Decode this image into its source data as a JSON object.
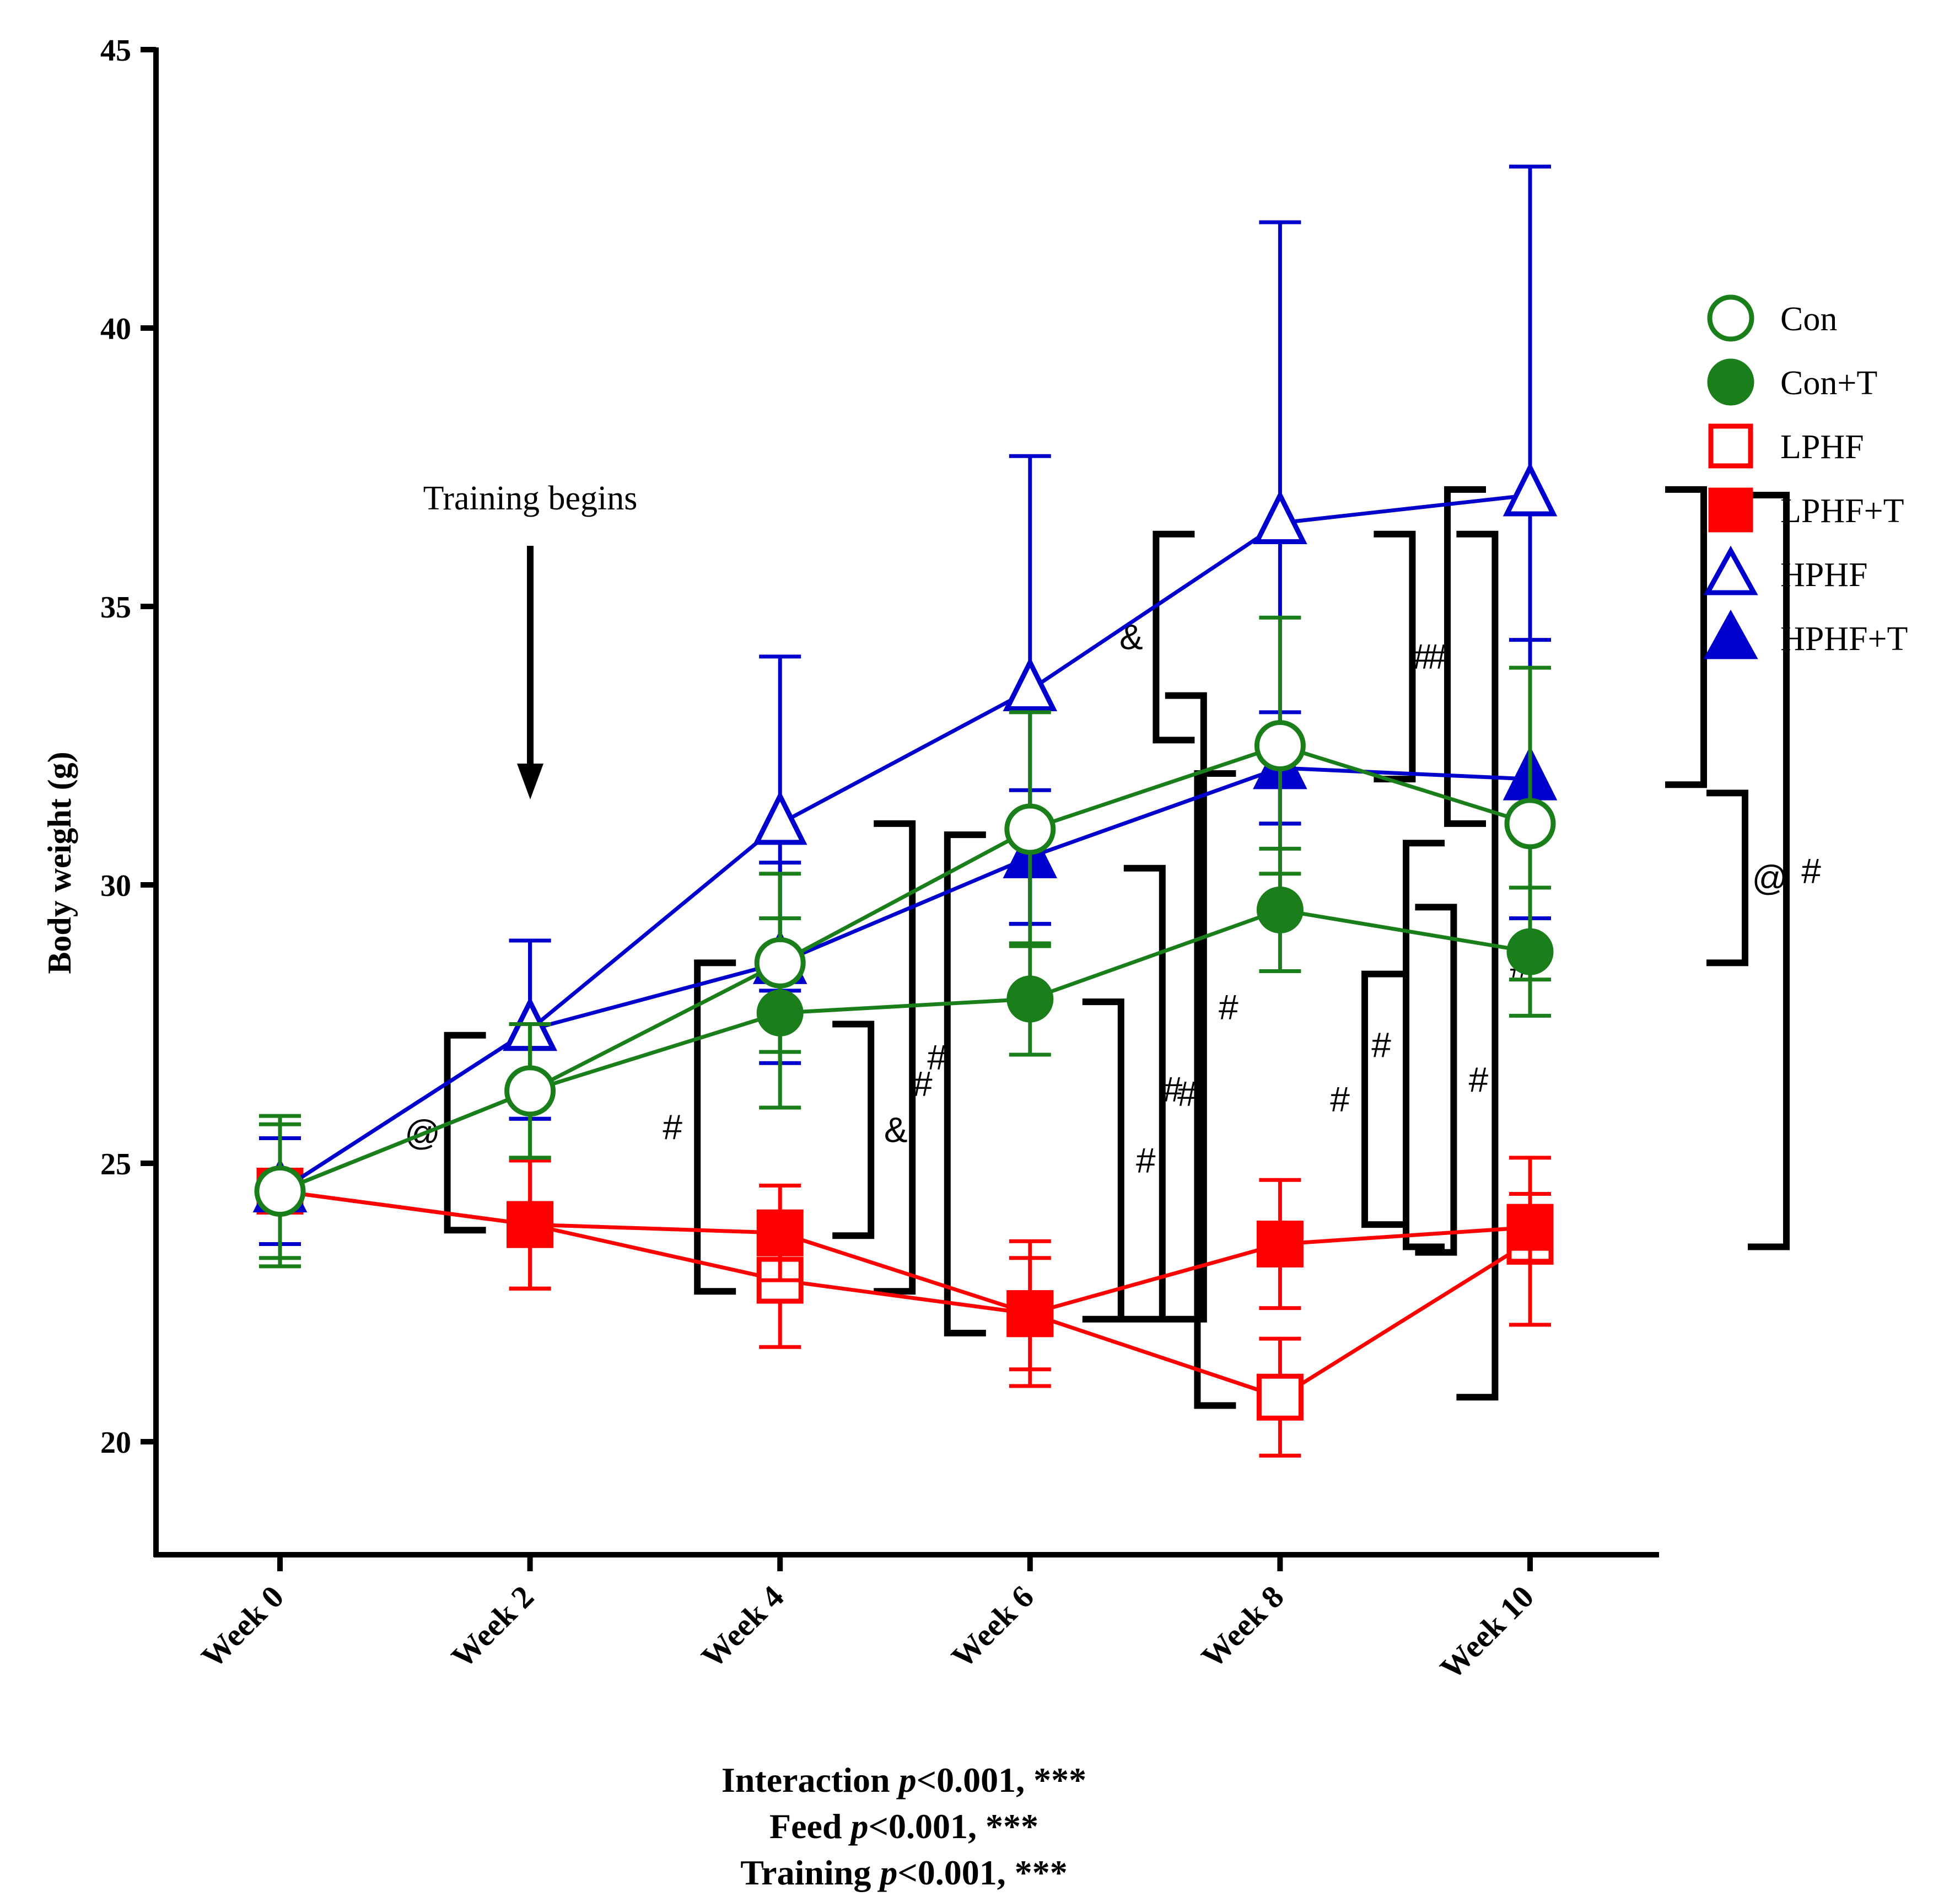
{
  "chart_data": {
    "type": "line",
    "ylabel": "Body weight (g)",
    "xlabel": "",
    "ylim": [
      18,
      45
    ],
    "yticks": [
      20,
      25,
      30,
      35,
      40,
      45
    ],
    "categories": [
      "Week 0",
      "Week 2",
      "Week 4",
      "Week 6",
      "Week 8",
      "Week 10"
    ],
    "legend_position": "right",
    "series": [
      {
        "name": "Con",
        "color": "#1a7f1a",
        "marker": "circle",
        "filled": false,
        "values": [
          24.5,
          26.3,
          28.6,
          31.0,
          32.5,
          31.1
        ],
        "sd": [
          1.35,
          1.2,
          1.6,
          2.1,
          2.3,
          2.8
        ]
      },
      {
        "name": "Con+T",
        "color": "#1a7f1a",
        "marker": "circle",
        "filled": true,
        "values": [
          24.5,
          26.3,
          27.7,
          27.95,
          29.55,
          28.8
        ],
        "sd": [
          1.2,
          1.2,
          1.7,
          1.0,
          1.1,
          1.15
        ]
      },
      {
        "name": "LPHF",
        "color": "#ff0000",
        "marker": "square",
        "filled": false,
        "values": [
          24.5,
          23.9,
          22.9,
          22.3,
          20.8,
          23.6
        ],
        "sd": [
          0.95,
          1.15,
          1.2,
          1.3,
          1.05,
          1.5
        ]
      },
      {
        "name": "LPHF+T",
        "color": "#ff0000",
        "marker": "square",
        "filled": true,
        "values": [
          24.5,
          23.9,
          23.75,
          22.3,
          23.55,
          23.85
        ],
        "sd": [
          0.95,
          1.15,
          0.85,
          1.0,
          1.15,
          0.6
        ]
      },
      {
        "name": "HPHF",
        "color": "#0000cc",
        "marker": "triangle",
        "filled": false,
        "values": [
          24.5,
          27.4,
          31.1,
          33.5,
          36.5,
          37.0
        ],
        "sd": [
          0.95,
          1.6,
          3.0,
          4.2,
          5.4,
          5.9
        ]
      },
      {
        "name": "HPHF+T",
        "color": "#0000cc",
        "marker": "triangle",
        "filled": true,
        "values": [
          24.5,
          27.4,
          28.6,
          30.5,
          32.1,
          31.9
        ],
        "sd": [
          0.95,
          1.6,
          1.8,
          1.2,
          1.0,
          2.5
        ]
      }
    ],
    "annotations": {
      "training_text": "Training begins",
      "brackets": [
        {
          "week": 1,
          "y_low": 23.8,
          "y_high": 27.3,
          "label": "@"
        },
        {
          "week": 2,
          "y_low": 22.7,
          "y_high": 28.6,
          "label": "#"
        },
        {
          "week": 2,
          "y_low": 23.7,
          "y_high": 27.5,
          "label": "&"
        },
        {
          "week": 2,
          "y_low": 22.7,
          "y_high": 31.1,
          "label": "#"
        },
        {
          "week": 3,
          "y_low": 21.95,
          "y_high": 30.9,
          "label": "#"
        },
        {
          "week": 3,
          "y_low": 22.2,
          "y_high": 27.9,
          "label": "#"
        },
        {
          "week": 3,
          "y_low": 22.2,
          "y_high": 30.3,
          "label": "#"
        },
        {
          "week": 3,
          "y_low": 22.2,
          "y_high": 33.4,
          "label": "#"
        },
        {
          "week": 4,
          "y_low": 20.65,
          "y_high": 32.0,
          "label": "#"
        },
        {
          "week": 4,
          "y_low": 32.6,
          "y_high": 36.3,
          "label": "&"
        },
        {
          "week": 4,
          "y_low": 31.9,
          "y_high": 36.3,
          "label": "#"
        },
        {
          "week": 4,
          "y_low": 23.4,
          "y_high": 29.6,
          "label": "#"
        },
        {
          "week": 4,
          "y_low": 20.8,
          "y_high": 36.3,
          "label": "#"
        },
        {
          "week": 5,
          "y_low": 31.1,
          "y_high": 37.1,
          "label": "#"
        },
        {
          "week": 5,
          "y_low": 23.5,
          "y_high": 30.75,
          "label": "#"
        },
        {
          "week": 5,
          "y_low": 23.9,
          "y_high": 28.4,
          "label": "#"
        },
        {
          "week": 5,
          "y_low": 31.8,
          "y_high": 37.1,
          "label": "#"
        },
        {
          "week": 5,
          "y_low": 28.6,
          "y_high": 31.65,
          "label": "@"
        },
        {
          "week": 5,
          "y_low": 23.5,
          "y_high": 37.0,
          "label": "#"
        }
      ]
    },
    "stats": [
      {
        "prefix": "Interaction ",
        "p": "p",
        "rest": "<0.001, ***"
      },
      {
        "prefix": "Feed  ",
        "p": "p",
        "rest": "<0.001, ***"
      },
      {
        "prefix": "Training ",
        "p": "p",
        "rest": "<0.001, ***"
      }
    ]
  }
}
